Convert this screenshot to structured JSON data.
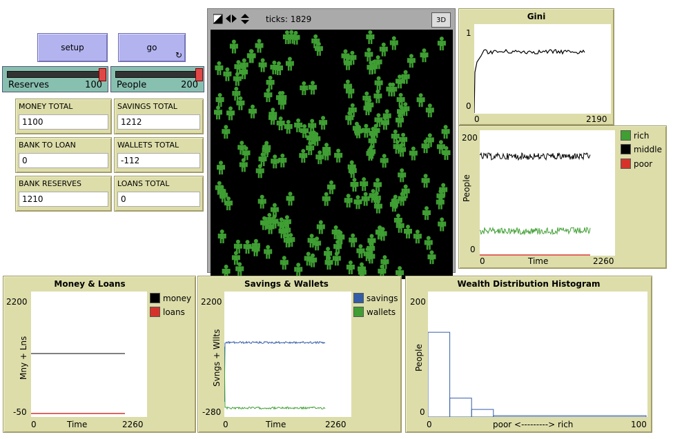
{
  "buttons": {
    "setup": "setup",
    "go": "go",
    "go_icon": "refresh-forever-icon"
  },
  "sliders": [
    {
      "label": "Reserves",
      "value": "100"
    },
    {
      "label": "People",
      "value": "200"
    }
  ],
  "monitors": [
    {
      "label": "MONEY TOTAL",
      "value": "1100"
    },
    {
      "label": "SAVINGS TOTAL",
      "value": "1212"
    },
    {
      "label": "BANK TO LOAN",
      "value": "0"
    },
    {
      "label": "WALLETS TOTAL",
      "value": "-112"
    },
    {
      "label": "BANK RESERVES",
      "value": "1210"
    },
    {
      "label": "LOANS TOTAL",
      "value": "0"
    }
  ],
  "world": {
    "ticks": "ticks: 1829",
    "btn3d": "3D",
    "bg": "#000000",
    "agent_color": "#3f9f33"
  },
  "plots": {
    "gini": {
      "title": "Gini",
      "ymax": "1",
      "ymin": "0",
      "xmin": "0",
      "xmax": "2190"
    },
    "people": {
      "title": "",
      "ylabel": "People",
      "xlabel": "Time",
      "ymax": "200",
      "ymin": "0",
      "xmin": "0",
      "xmax": "2260",
      "legend": [
        {
          "name": "rich",
          "color": "#3f9f33"
        },
        {
          "name": "middle",
          "color": "#000000"
        },
        {
          "name": "poor",
          "color": "#d73229"
        }
      ]
    },
    "money": {
      "title": "Money & Loans",
      "ylabel": "Mny + Lns",
      "xlabel": "Time",
      "ymax": "2200",
      "ymin": "-50",
      "xmin": "0",
      "xmax": "2260",
      "legend": [
        {
          "name": "money",
          "color": "#000000"
        },
        {
          "name": "loans",
          "color": "#d73229"
        }
      ]
    },
    "savings": {
      "title": "Savings & Wallets",
      "ylabel": "Svngs + Wllts",
      "xlabel": "Time",
      "ymax": "2200",
      "ymin": "-280",
      "xmin": "0",
      "xmax": "2260",
      "legend": [
        {
          "name": "savings",
          "color": "#345da8"
        },
        {
          "name": "wallets",
          "color": "#3f9f33"
        }
      ]
    },
    "hist": {
      "title": "Wealth Distribution Histogram",
      "ylabel": "People",
      "xlabel": "poor <---------> rich",
      "ymax": "200",
      "ymin": "0",
      "xmin": "0",
      "xmax": "100"
    }
  },
  "chart_data": [
    {
      "type": "line",
      "title": "Gini",
      "x_range": [
        0,
        2190
      ],
      "ylim": [
        0,
        1
      ],
      "series": [
        {
          "values_approx": "rises quickly to ~0.63 then flat ~0.62-0.66 until ~1829"
        }
      ]
    },
    {
      "type": "line",
      "xlabel": "Time",
      "ylabel": "People",
      "x_range": [
        0,
        2260
      ],
      "ylim": [
        0,
        200
      ],
      "series": [
        {
          "name": "rich",
          "approx": 25
        },
        {
          "name": "middle",
          "approx": 170
        },
        {
          "name": "poor",
          "approx": 0
        }
      ]
    },
    {
      "type": "line",
      "title": "Money & Loans",
      "xlabel": "Time",
      "ylabel": "Mny + Lns",
      "x_range": [
        0,
        2260
      ],
      "ylim": [
        -50,
        2200
      ],
      "series": [
        {
          "name": "money",
          "approx": 1100
        },
        {
          "name": "loans",
          "approx": 0
        }
      ]
    },
    {
      "type": "line",
      "title": "Savings & Wallets",
      "xlabel": "Time",
      "ylabel": "Svngs + Wllts",
      "x_range": [
        0,
        2260
      ],
      "ylim": [
        -280,
        2200
      ],
      "series": [
        {
          "name": "savings",
          "approx": 1212
        },
        {
          "name": "wallets",
          "approx": -112
        }
      ]
    },
    {
      "type": "bar",
      "title": "Wealth Distribution Histogram",
      "xlabel": "poor <---------> rich",
      "ylabel": "People",
      "x_range": [
        0,
        100
      ],
      "ylim": [
        0,
        200
      ],
      "bins": [
        {
          "x0": 0,
          "x1": 10,
          "count": 135
        },
        {
          "x0": 10,
          "x1": 20,
          "count": 30
        },
        {
          "x0": 20,
          "x1": 30,
          "count": 12
        },
        {
          "x0": 30,
          "x1": 100,
          "count": 2
        }
      ]
    }
  ]
}
